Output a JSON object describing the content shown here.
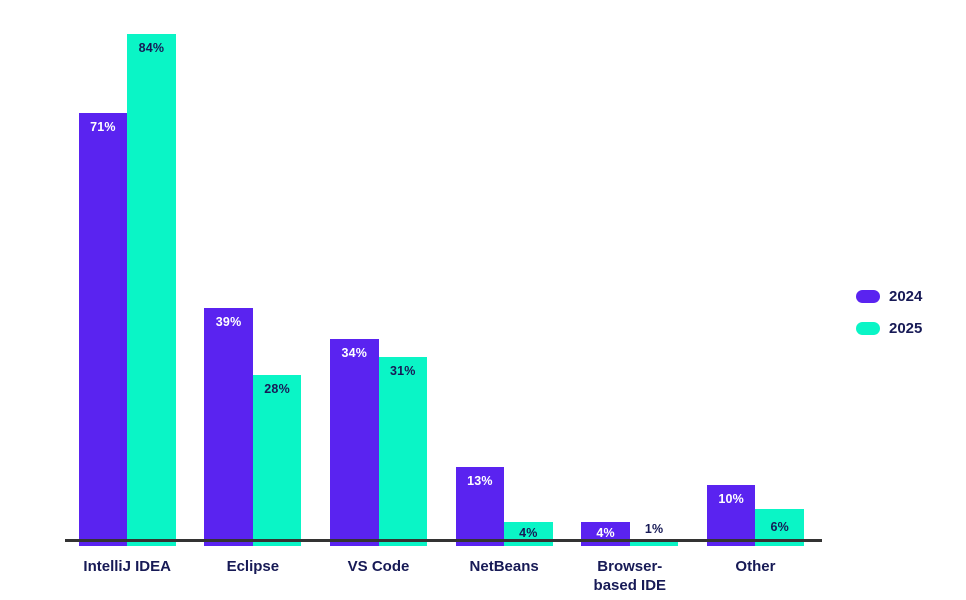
{
  "chart_data": {
    "type": "bar",
    "title": "",
    "xlabel": "",
    "ylabel": "",
    "categories": [
      "IntelliJ IDEA",
      "Eclipse",
      "VS Code",
      "NetBeans",
      "Browser-\nbased IDE",
      "Other"
    ],
    "series": [
      {
        "name": "2024",
        "color": "#5A23F0",
        "label_color": "#FFFFFF",
        "values": [
          71,
          39,
          34,
          13,
          4,
          10
        ]
      },
      {
        "name": "2025",
        "color": "#0AF5C6",
        "label_color": "#171A56",
        "values": [
          84,
          28,
          31,
          4,
          1,
          6
        ]
      }
    ],
    "value_suffix": "%",
    "ylim": [
      0,
      88
    ],
    "grid": false,
    "legend_position": "right",
    "axis_line_color": "#333333",
    "category_label_color": "#171A56",
    "background": "#FFFFFF"
  }
}
